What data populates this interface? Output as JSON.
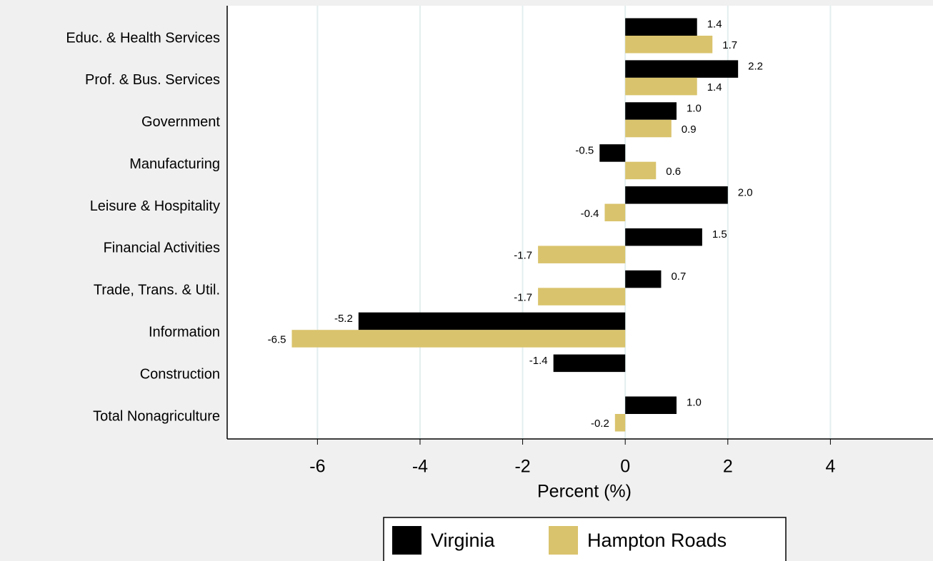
{
  "chart_data": {
    "type": "bar",
    "orientation": "horizontal",
    "xlabel": "Percent (%)",
    "categories": [
      "Educ. & Health Services",
      "Prof. & Bus. Services",
      "Government",
      "Manufacturing",
      "Leisure & Hospitality",
      "Financial Activities",
      "Trade, Trans. & Util.",
      "Information",
      "Construction",
      "Total Nonagriculture"
    ],
    "series": [
      {
        "name": "Virginia",
        "color": "#000000",
        "values": [
          1.4,
          2.2,
          1.0,
          -0.5,
          2.0,
          1.5,
          0.7,
          -5.2,
          -1.4,
          1.0
        ],
        "value_labels": [
          "1.4",
          "2.2",
          "1.0",
          "-0.5",
          "2.0",
          "1.5",
          "0.7",
          "-5.2",
          "-1.4",
          "1.0"
        ]
      },
      {
        "name": "Hampton Roads",
        "color": "#d9c36c",
        "values": [
          1.7,
          1.4,
          0.9,
          0.6,
          -0.4,
          -1.7,
          -1.7,
          -6.5,
          null,
          -0.2
        ],
        "value_labels": [
          "1.7",
          "1.4",
          "0.9",
          "0.6",
          "-0.4",
          "-1.7",
          "-1.7",
          "-6.5",
          null,
          "-0.2"
        ]
      }
    ],
    "xlim": [
      -7.76,
      6.0
    ],
    "xticks": [
      -6,
      -4,
      -2,
      0,
      2,
      4
    ],
    "grid": true,
    "legend": "bottom"
  }
}
